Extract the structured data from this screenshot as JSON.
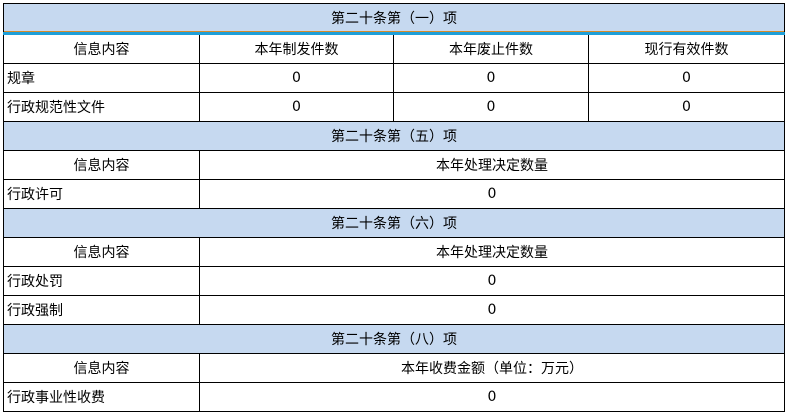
{
  "section1": {
    "title": "第二十条第（一）项",
    "headers": [
      "信息内容",
      "本年制发件数",
      "本年废止件数",
      "现行有效件数"
    ],
    "rows": [
      {
        "label": "规章",
        "values": [
          "0",
          "0",
          "0"
        ]
      },
      {
        "label": "行政规范性文件",
        "values": [
          "0",
          "0",
          "0"
        ]
      }
    ]
  },
  "section2": {
    "title": "第二十条第（五）项",
    "headers": [
      "信息内容",
      "本年处理决定数量"
    ],
    "rows": [
      {
        "label": "行政许可",
        "value": "0"
      }
    ]
  },
  "section3": {
    "title": "第二十条第（六）项",
    "headers": [
      "信息内容",
      "本年处理决定数量"
    ],
    "rows": [
      {
        "label": "行政处罚",
        "value": "0"
      },
      {
        "label": "行政强制",
        "value": "0"
      }
    ]
  },
  "section4": {
    "title": "第二十条第（八）项",
    "headers": [
      "信息内容",
      "本年收费金额（单位：万元）"
    ],
    "rows": [
      {
        "label": "行政事业性收费",
        "value": "0"
      }
    ]
  },
  "colors": {
    "section_header_bg": "#c6d9f0",
    "accent_line": "#1e9fd8"
  }
}
